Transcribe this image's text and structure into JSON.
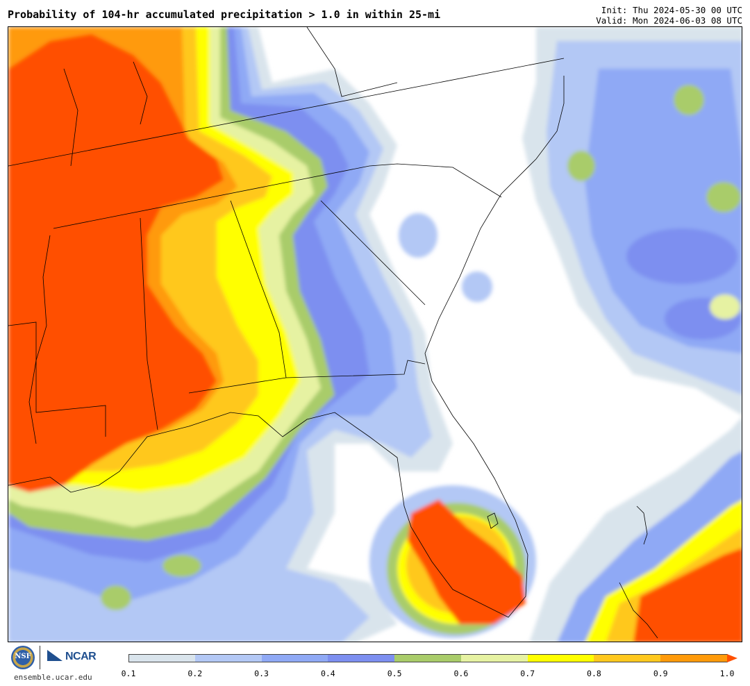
{
  "header": {
    "title": "Probability of 104-hr accumulated precipitation > 1.0 in within 25-mi",
    "init_line": "Init: Thu 2024-05-30 00 UTC",
    "valid_line": "Valid: Mon 2024-06-03 08 UTC"
  },
  "footer": {
    "site": "ensemble.ucar.edu",
    "nsf_logo_text": "NSF",
    "ncar_logo_text": "NCAR"
  },
  "colorbar": {
    "ticks": [
      "0.1",
      "0.2",
      "0.3",
      "0.4",
      "0.5",
      "0.6",
      "0.7",
      "0.8",
      "0.9",
      "1.0"
    ],
    "colors": [
      "#d9e4ec",
      "#b3c8f5",
      "#8fa9f5",
      "#7d8ff0",
      "#a9cc6a",
      "#e6f2a2",
      "#ffff00",
      "#ffc81e",
      "#ff9a0a",
      "#ff5000"
    ]
  },
  "palette": {
    "p10": "#d9e4ec",
    "p20": "#b3c8f5",
    "p30": "#8fa9f5",
    "p40": "#7d8ff0",
    "p50": "#a9cc6a",
    "p60": "#e6f2a2",
    "p70": "#ffff00",
    "p80": "#ffc81e",
    "p90": "#ff9a0a",
    "p100": "#ff5000"
  }
}
